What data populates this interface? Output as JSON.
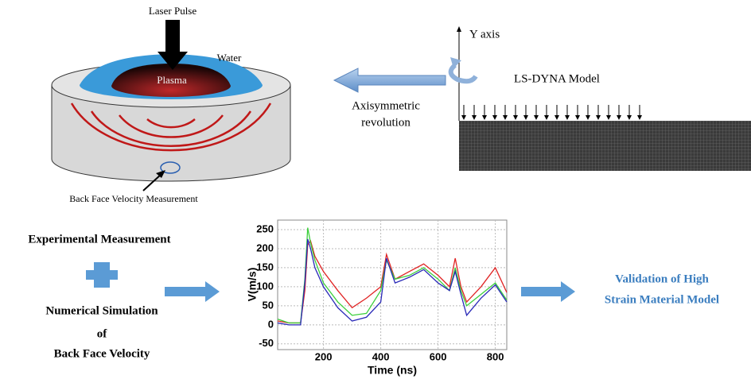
{
  "labels": {
    "laser_pulse": "Laser Pulse",
    "water": "Water",
    "plasma": "Plasma",
    "back_face": "Back Face Velocity Measurement",
    "y_axis": "Y axis",
    "ls_dyna": "LS-DYNA Model",
    "axisymmetric": [
      "Axisymmetric",
      "revolution"
    ],
    "experimental": "Experimental Measurement",
    "numerical": [
      "Numerical Simulation",
      "of",
      "Back Face Velocity"
    ],
    "validation": [
      "Validation of High",
      "Strain Material Model"
    ]
  },
  "chart_data": {
    "type": "line",
    "x_label": "Time (ns)",
    "y_label": "V(m/s)",
    "xlim": [
      40,
      840
    ],
    "ylim": [
      -65,
      275
    ],
    "xticks": [
      200,
      400,
      600,
      800
    ],
    "yticks": [
      -50,
      0,
      50,
      100,
      150,
      200,
      250
    ],
    "grid": true,
    "x": [
      40,
      80,
      120,
      135,
      145,
      155,
      170,
      200,
      250,
      300,
      350,
      400,
      420,
      450,
      500,
      550,
      600,
      640,
      660,
      680,
      700,
      750,
      800,
      840
    ],
    "series": [
      {
        "color": "#e02424",
        "values": [
          10,
          5,
          5,
          90,
          210,
          220,
          180,
          140,
          90,
          45,
          70,
          100,
          185,
          120,
          140,
          160,
          130,
          100,
          175,
          100,
          60,
          100,
          150,
          85
        ]
      },
      {
        "color": "#3ccf3c",
        "values": [
          15,
          5,
          5,
          120,
          255,
          215,
          170,
          110,
          60,
          25,
          30,
          90,
          170,
          120,
          130,
          150,
          120,
          90,
          150,
          90,
          50,
          80,
          110,
          65
        ]
      },
      {
        "color": "#2a2ab8",
        "values": [
          5,
          0,
          0,
          110,
          225,
          200,
          150,
          100,
          45,
          10,
          20,
          60,
          175,
          110,
          125,
          145,
          110,
          90,
          140,
          80,
          25,
          70,
          105,
          60
        ]
      }
    ]
  }
}
